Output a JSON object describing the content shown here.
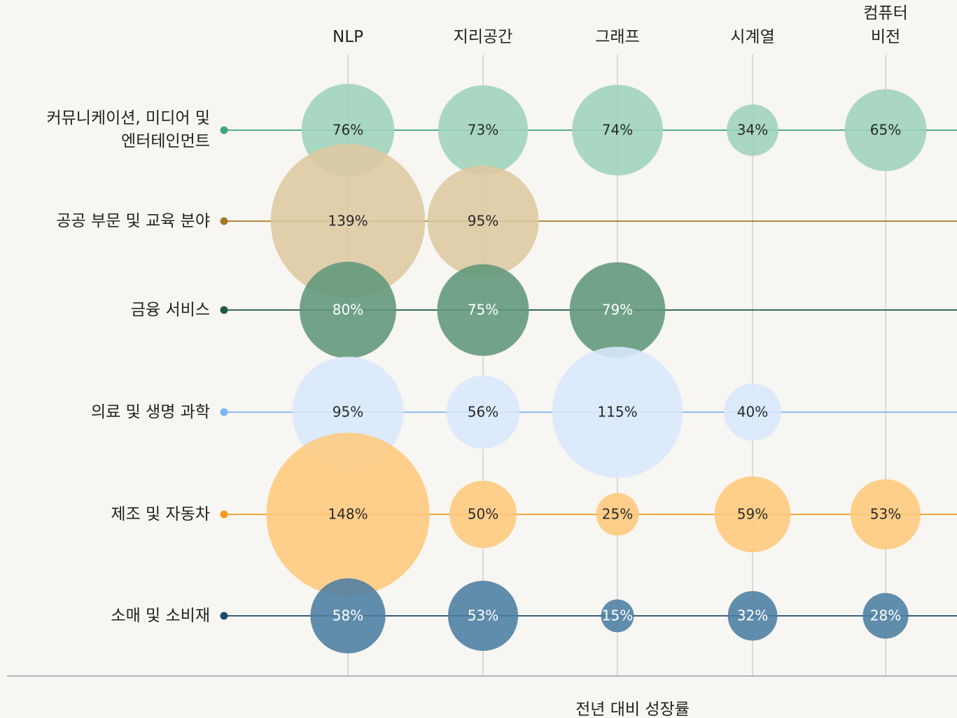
{
  "chart_data": {
    "type": "bubble_matrix",
    "categories": [
      "NLP",
      "지리공간",
      "그래프",
      "시계열",
      "컴퓨터\n비전"
    ],
    "xlabel": "전년 대비 성장률",
    "series": [
      {
        "name": "커뮤니케이션, 미디어 및\n엔터테인먼트",
        "color": "#3fa57b",
        "fill": "#9dd3bb",
        "label_color": "#2a2a2a",
        "values": [
          76,
          73,
          74,
          34,
          65
        ],
        "value_labels": [
          "76%",
          "73%",
          "74%",
          "34%",
          "65%"
        ]
      },
      {
        "name": "공공 부문 및 교육 분야",
        "color": "#a8772a",
        "fill": "#ddc8a0",
        "label_color": "#2a2a2a",
        "values": [
          139,
          95,
          null,
          null,
          null
        ],
        "value_labels": [
          "139%",
          "95%",
          null,
          null,
          null
        ]
      },
      {
        "name": "금융 서비스",
        "color": "#1c5a38",
        "fill": "#5f977a",
        "label_color": "#ffffff",
        "values": [
          80,
          75,
          79,
          null,
          null
        ],
        "value_labels": [
          "80%",
          "75%",
          "79%",
          null,
          null
        ]
      },
      {
        "name": "의료 및 생명 과학",
        "color": "#7eb5f2",
        "fill": "#d8e8fc",
        "label_color": "#2a2a2a",
        "values": [
          95,
          56,
          115,
          40,
          null
        ],
        "value_labels": [
          "95%",
          "56%",
          "115%",
          "40%",
          null
        ]
      },
      {
        "name": "제조 및 자동차",
        "color": "#f39a1c",
        "fill": "#fec97c",
        "label_color": "#2a2a2a",
        "values": [
          148,
          50,
          25,
          59,
          53
        ],
        "value_labels": [
          "148%",
          "50%",
          "25%",
          "59%",
          "53%"
        ]
      },
      {
        "name": "소매 및 소비재",
        "color": "#1d4b70",
        "fill": "#4b7ea3",
        "label_color": "#ffffff",
        "values": [
          58,
          53,
          15,
          32,
          28
        ],
        "value_labels": [
          "58%",
          "53%",
          "15%",
          "32%",
          "28%"
        ]
      }
    ]
  }
}
